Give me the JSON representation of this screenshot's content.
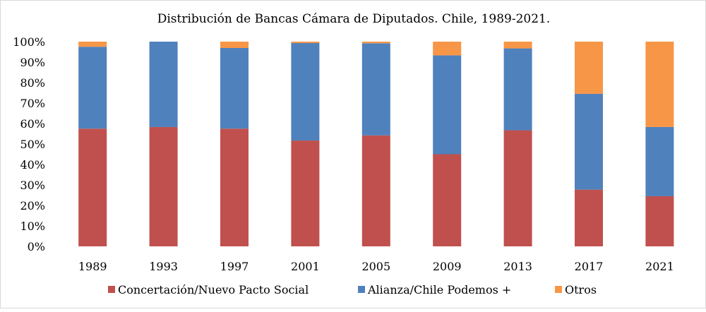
{
  "chart_data": {
    "type": "bar",
    "stacked": true,
    "title": "Distribución de Bancas Cámara de Diputados. Chile, 1989-2021.",
    "xlabel": "",
    "ylabel": "",
    "ylim": [
      0,
      100
    ],
    "y_ticks": [
      "0%",
      "10%",
      "20%",
      "30%",
      "40%",
      "50%",
      "60%",
      "70%",
      "80%",
      "90%",
      "100%"
    ],
    "grid": false,
    "legend_position": "bottom",
    "categories": [
      "1989",
      "1993",
      "1997",
      "2001",
      "2005",
      "2009",
      "2013",
      "2017",
      "2021"
    ],
    "series": [
      {
        "name": "Concertación/Nuevo Pacto Social",
        "color": "#C0504D",
        "values": [
          57.5,
          58.3,
          57.5,
          51.7,
          54.2,
          45.0,
          56.7,
          27.7,
          24.5
        ]
      },
      {
        "name": "Alianza/Chile Podemos +",
        "color": "#4F81BD",
        "values": [
          40.0,
          41.7,
          39.4,
          47.6,
          45.0,
          48.3,
          40.0,
          46.8,
          33.8
        ]
      },
      {
        "name": "Otros",
        "color": "#F79646",
        "values": [
          2.5,
          0.0,
          3.1,
          0.7,
          0.8,
          6.7,
          3.3,
          25.5,
          41.7
        ]
      }
    ]
  }
}
